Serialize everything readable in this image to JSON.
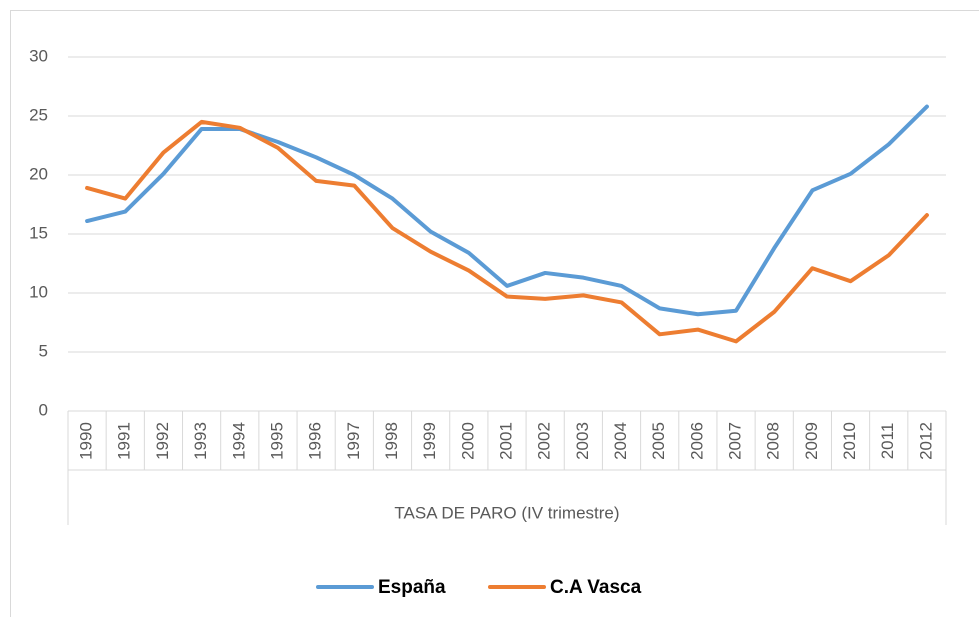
{
  "chart_data": {
    "type": "line",
    "x_label": "TASA DE PARO (IV trimestre)",
    "categories": [
      "1990",
      "1991",
      "1992",
      "1993",
      "1994",
      "1995",
      "1996",
      "1997",
      "1998",
      "1999",
      "2000",
      "2001",
      "2002",
      "2003",
      "2004",
      "2005",
      "2006",
      "2007",
      "2008",
      "2009",
      "2010",
      "2011",
      "2012"
    ],
    "series": [
      {
        "name": "España",
        "color": "#5b9bd5",
        "values": [
          16.1,
          16.9,
          20.1,
          23.9,
          23.9,
          22.8,
          21.5,
          20.0,
          18.0,
          15.2,
          13.4,
          10.6,
          11.7,
          11.3,
          10.6,
          8.7,
          8.2,
          8.5,
          13.8,
          18.7,
          20.1,
          22.6,
          25.8
        ]
      },
      {
        "name": "C.A Vasca",
        "color": "#ed7d31",
        "values": [
          18.9,
          18.0,
          21.9,
          24.5,
          24.0,
          22.3,
          19.5,
          19.1,
          15.5,
          13.5,
          11.9,
          9.7,
          9.5,
          9.8,
          9.2,
          6.5,
          6.9,
          5.9,
          8.4,
          12.1,
          11.0,
          13.2,
          16.6
        ]
      }
    ],
    "ylim": [
      0,
      30
    ],
    "yticks": [
      0,
      5,
      10,
      15,
      20,
      25,
      30
    ],
    "grid": true,
    "legend": "bottom"
  }
}
